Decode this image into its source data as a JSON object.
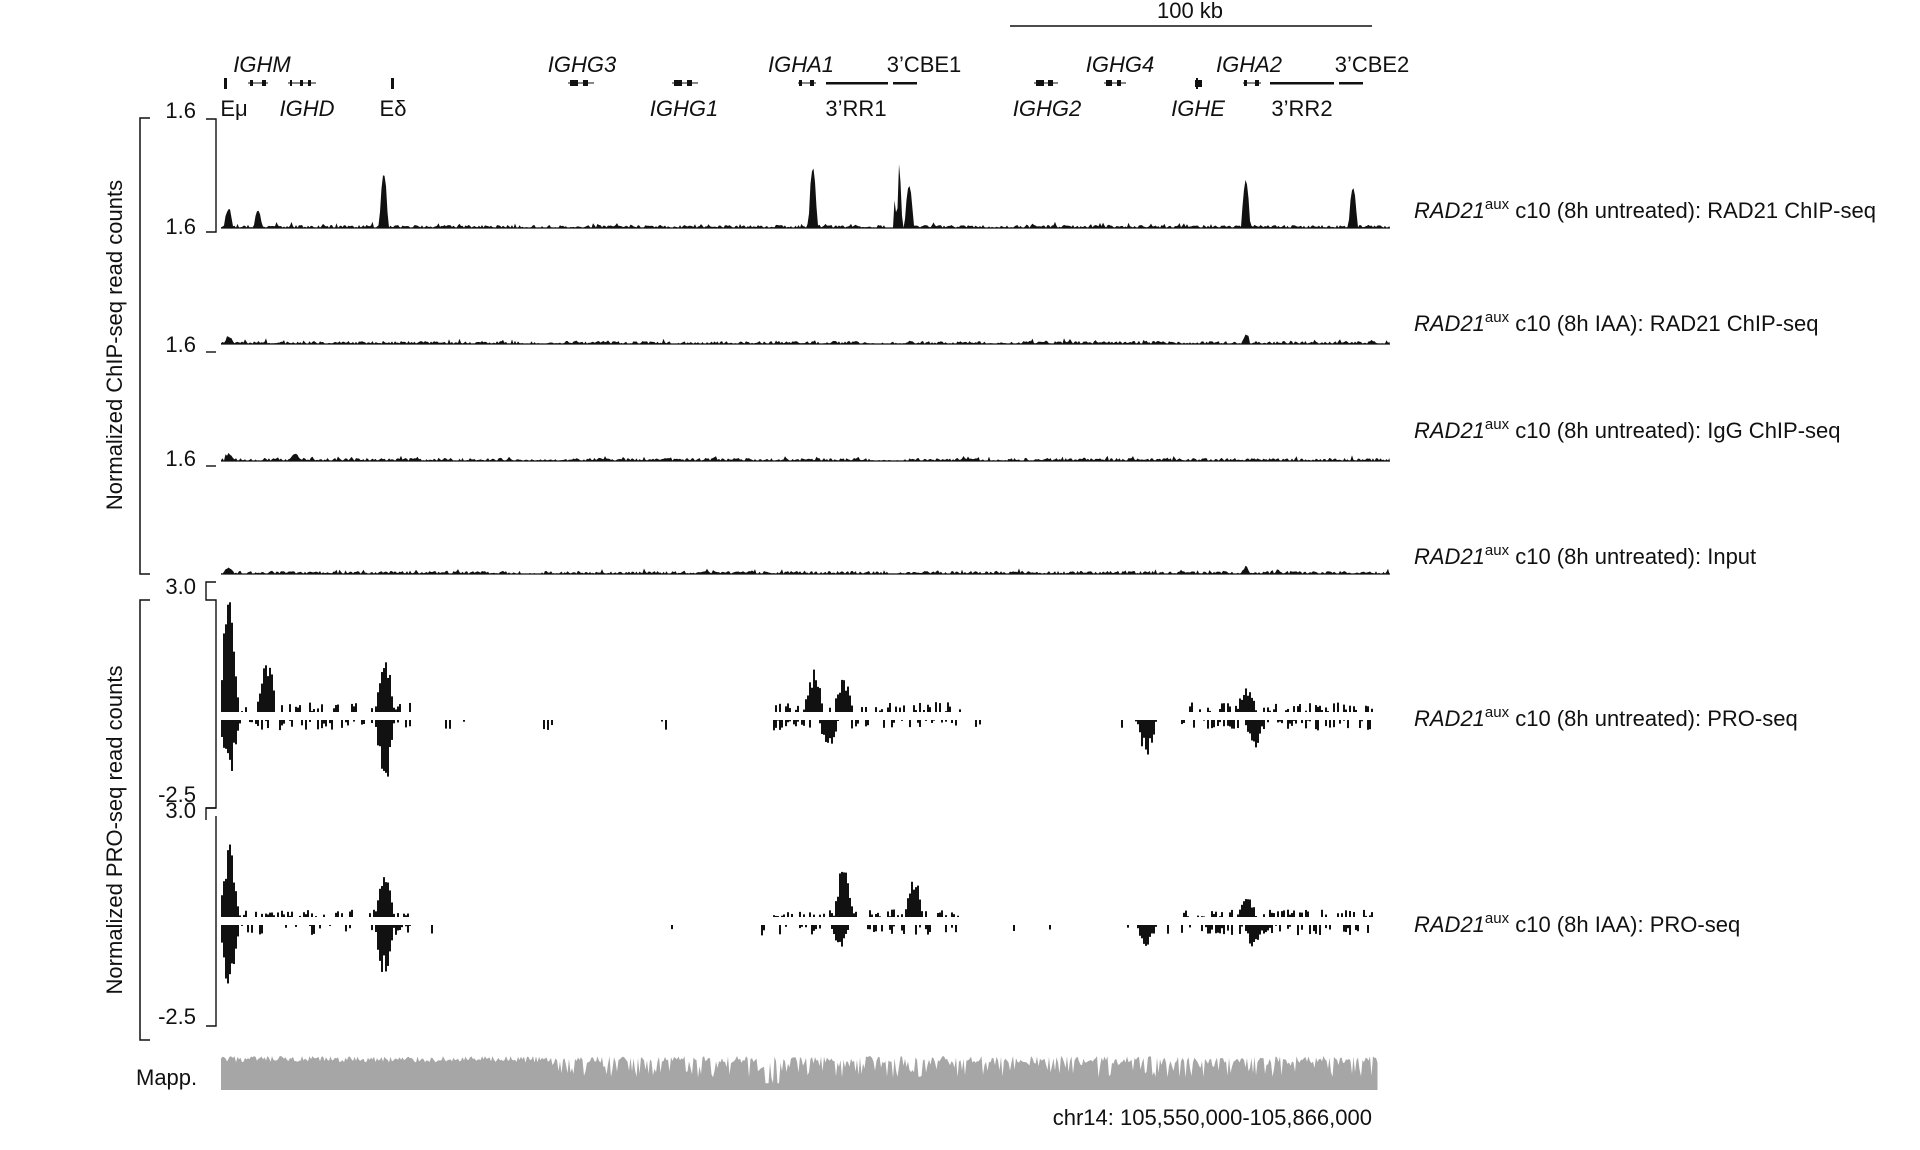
{
  "scale_bar": {
    "label": "100 kb"
  },
  "gene_labels_top": [
    "IGHM",
    "IGHG3",
    "IGHA1",
    "IGHG4",
    "IGHA2"
  ],
  "element_labels_top": [
    "3’CBE1",
    "3’CBE2"
  ],
  "gene_labels_bottom": [
    "IGHD",
    "IGHG1",
    "IGHG2",
    "IGHE"
  ],
  "element_labels_bottom": [
    "Eμ",
    "Eδ",
    "3’RR1",
    "3’RR2"
  ],
  "axis_groups": [
    {
      "label": "Normalized ChIP-seq read counts"
    },
    {
      "label": "Normalized PRO-seq read counts"
    }
  ],
  "tracks": [
    {
      "id": "chip_rad21_untreated",
      "type": "chip",
      "ymax": "1.6",
      "label_gene": "RAD21",
      "label_sup": "aux",
      "label_rest": " c10 (8h untreated): RAD21 ChIP-seq"
    },
    {
      "id": "chip_rad21_iaa",
      "type": "chip",
      "ymax": "1.6",
      "label_gene": "RAD21",
      "label_sup": "aux",
      "label_rest": " c10 (8h IAA): RAD21 ChIP-seq"
    },
    {
      "id": "chip_igg",
      "type": "chip",
      "ymax": "1.6",
      "label_gene": "RAD21",
      "label_sup": "aux",
      "label_rest": " c10 (8h untreated): IgG ChIP-seq"
    },
    {
      "id": "chip_input",
      "type": "chip",
      "ymax": "1.6",
      "label_gene": "RAD21",
      "label_sup": "aux",
      "label_rest": " c10 (8h untreated): Input"
    },
    {
      "id": "pro_untreated",
      "type": "pro",
      "ymax": "3.0",
      "ymin": "-2.5",
      "label_gene": "RAD21",
      "label_sup": "aux",
      "label_rest": " c10 (8h untreated): PRO-seq"
    },
    {
      "id": "pro_iaa",
      "type": "pro",
      "ymax": "3.0",
      "ymin": "-2.5",
      "label_gene": "RAD21",
      "label_sup": "aux",
      "label_rest": " c10 (8h IAA): PRO-seq"
    }
  ],
  "mappability": {
    "label": "Mapp."
  },
  "coordinates": "chr14: 105,550,000-105,866,000",
  "chart_data": {
    "type": "area",
    "region": "chr14: 105,550,000-105,866,000",
    "x_range": [
      105550000,
      105866000
    ],
    "chip_ylim": [
      0,
      1.6
    ],
    "pro_ylim": [
      -2.5,
      3.0
    ],
    "series": [
      {
        "name": "RAD21aux c10 (8h untreated): RAD21 ChIP-seq",
        "peaks": [
          [
            105552000,
            0.25
          ],
          [
            105560000,
            0.22
          ],
          [
            105594000,
            0.75
          ],
          [
            105710000,
            0.85
          ],
          [
            105733000,
            0.95
          ],
          [
            105736000,
            0.6
          ],
          [
            105827000,
            0.65
          ],
          [
            105856000,
            0.55
          ]
        ]
      },
      {
        "name": "RAD21aux c10 (8h IAA): RAD21 ChIP-seq",
        "peaks": [
          [
            105552000,
            0.08
          ],
          [
            105827000,
            0.1
          ]
        ]
      },
      {
        "name": "RAD21aux c10 (8h untreated): IgG ChIP-seq",
        "peaks": [
          [
            105552000,
            0.08
          ],
          [
            105570000,
            0.1
          ]
        ]
      },
      {
        "name": "RAD21aux c10 (8h untreated): Input",
        "peaks": [
          [
            105552000,
            0.06
          ],
          [
            105827000,
            0.08
          ]
        ]
      },
      {
        "name": "RAD21aux c10 (8h untreated): PRO-seq",
        "plus_peaks": [
          [
            105552000,
            2.9
          ],
          [
            105562000,
            1.5
          ],
          [
            105594000,
            1.4
          ],
          [
            105710000,
            1.1
          ],
          [
            105718000,
            0.9
          ],
          [
            105827000,
            0.7
          ]
        ],
        "minus_peaks": [
          [
            105552000,
            -1.9
          ],
          [
            105594000,
            -2.1
          ],
          [
            105714000,
            -0.9
          ],
          [
            105800000,
            -1.2
          ],
          [
            105829000,
            -1.0
          ]
        ]
      },
      {
        "name": "RAD21aux c10 (8h IAA): PRO-seq",
        "plus_peaks": [
          [
            105552000,
            2.6
          ],
          [
            105594000,
            1.5
          ],
          [
            105718000,
            1.7
          ],
          [
            105737000,
            1.3
          ],
          [
            105827000,
            0.8
          ]
        ],
        "minus_peaks": [
          [
            105552000,
            -2.4
          ],
          [
            105594000,
            -1.9
          ],
          [
            105717000,
            -0.8
          ],
          [
            105800000,
            -0.8
          ],
          [
            105829000,
            -0.8
          ]
        ]
      },
      {
        "name": "Mapp."
      }
    ]
  }
}
